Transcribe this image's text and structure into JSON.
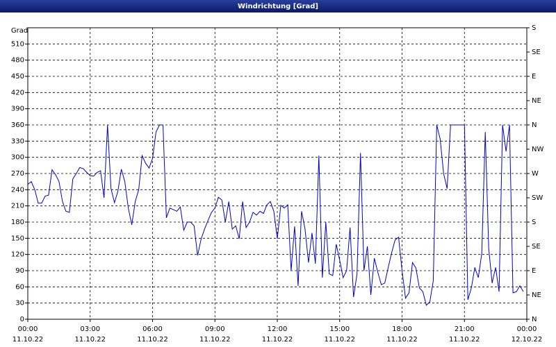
{
  "chart_data": {
    "type": "line",
    "title": "Windrichtung [Grad]",
    "y_label": "Grad",
    "x": [
      0,
      10,
      20,
      30,
      40,
      50,
      60,
      70,
      80,
      90,
      100,
      110,
      120,
      130,
      140,
      150,
      160,
      170,
      180,
      190,
      200,
      210,
      220,
      230,
      240,
      250,
      260,
      270,
      280,
      290,
      300,
      310,
      320,
      330,
      340,
      350,
      360,
      370,
      380,
      390,
      400,
      410,
      420,
      430,
      440,
      450,
      460,
      470,
      480,
      490,
      500,
      510,
      520,
      530,
      540,
      550,
      560,
      570,
      580,
      590,
      600,
      610,
      620,
      630,
      640,
      650,
      660,
      670,
      680,
      690,
      700,
      710,
      720,
      730,
      740,
      750,
      760,
      770,
      780,
      790,
      800,
      810,
      820,
      830,
      840,
      850,
      860,
      870,
      880,
      890,
      900,
      910,
      920,
      930,
      940,
      950,
      960,
      970,
      980,
      990,
      1000,
      1010,
      1020,
      1030,
      1040,
      1050,
      1060,
      1070,
      1080,
      1090,
      1100,
      1110,
      1120,
      1130,
      1140,
      1150,
      1160,
      1170,
      1180,
      1190,
      1200,
      1210,
      1220,
      1230,
      1240,
      1250,
      1260,
      1270,
      1280,
      1290,
      1300,
      1310,
      1320,
      1330,
      1340,
      1350,
      1360,
      1370,
      1380,
      1390,
      1400,
      1410,
      1420,
      1430
    ],
    "values": [
      250,
      255,
      240,
      215,
      215,
      228,
      230,
      277,
      268,
      255,
      218,
      200,
      198,
      260,
      270,
      281,
      279,
      272,
      266,
      265,
      272,
      275,
      225,
      360,
      242,
      216,
      237,
      278,
      255,
      206,
      175,
      218,
      240,
      303,
      289,
      280,
      298,
      347,
      360,
      360,
      188,
      206,
      203,
      200,
      208,
      165,
      180,
      180,
      173,
      118,
      148,
      167,
      183,
      198,
      206,
      226,
      221,
      180,
      218,
      167,
      173,
      149,
      218,
      170,
      180,
      198,
      193,
      200,
      196,
      212,
      218,
      200,
      149,
      211,
      206,
      212,
      90,
      172,
      62,
      200,
      167,
      105,
      160,
      103,
      303,
      77,
      180,
      84,
      81,
      139,
      109,
      77,
      90,
      170,
      41,
      84,
      308,
      90,
      135,
      45,
      113,
      87,
      64,
      67,
      96,
      123,
      147,
      152,
      90,
      39,
      49,
      105,
      95,
      58,
      51,
      26,
      32,
      71,
      360,
      334,
      270,
      242,
      360,
      360,
      360,
      360,
      360,
      36,
      58,
      96,
      77,
      122,
      347,
      131,
      67,
      96,
      51,
      360,
      311,
      360,
      49,
      51,
      62,
      51
    ],
    "color": "#0000cc",
    "xlim": [
      0,
      1440
    ],
    "xticks": [
      {
        "value": 0,
        "label": "00:00"
      },
      {
        "value": 180,
        "label": "03:00"
      },
      {
        "value": 360,
        "label": "06:00"
      },
      {
        "value": 540,
        "label": "09:00"
      },
      {
        "value": 720,
        "label": "12:00"
      },
      {
        "value": 900,
        "label": "15:00"
      },
      {
        "value": 1080,
        "label": "18:00"
      },
      {
        "value": 1260,
        "label": "21:00"
      },
      {
        "value": 1440,
        "label": "00:00"
      }
    ],
    "xtick_dates": [
      "11.10.22",
      "11.10.22",
      "11.10.22",
      "11.10.22",
      "11.10.22",
      "11.10.22",
      "11.10.22",
      "11.10.22",
      "12.10.22"
    ],
    "ylim": [
      0,
      540
    ],
    "yticks": [
      0,
      30,
      60,
      90,
      120,
      150,
      180,
      210,
      240,
      270,
      300,
      330,
      360,
      390,
      420,
      450,
      480,
      510
    ],
    "y2lim": [
      0,
      540
    ],
    "y2ticks": [
      {
        "value": 0,
        "label": "N"
      },
      {
        "value": 45,
        "label": "NE"
      },
      {
        "value": 90,
        "label": "E"
      },
      {
        "value": 135,
        "label": "SE"
      },
      {
        "value": 180,
        "label": "S"
      },
      {
        "value": 225,
        "label": "SW"
      },
      {
        "value": 270,
        "label": "W"
      },
      {
        "value": 315,
        "label": "NW"
      },
      {
        "value": 360,
        "label": "N"
      },
      {
        "value": 405,
        "label": "NE"
      },
      {
        "value": 450,
        "label": "E"
      },
      {
        "value": 495,
        "label": "SE"
      },
      {
        "value": 540,
        "label": "S"
      }
    ],
    "grid": true
  }
}
